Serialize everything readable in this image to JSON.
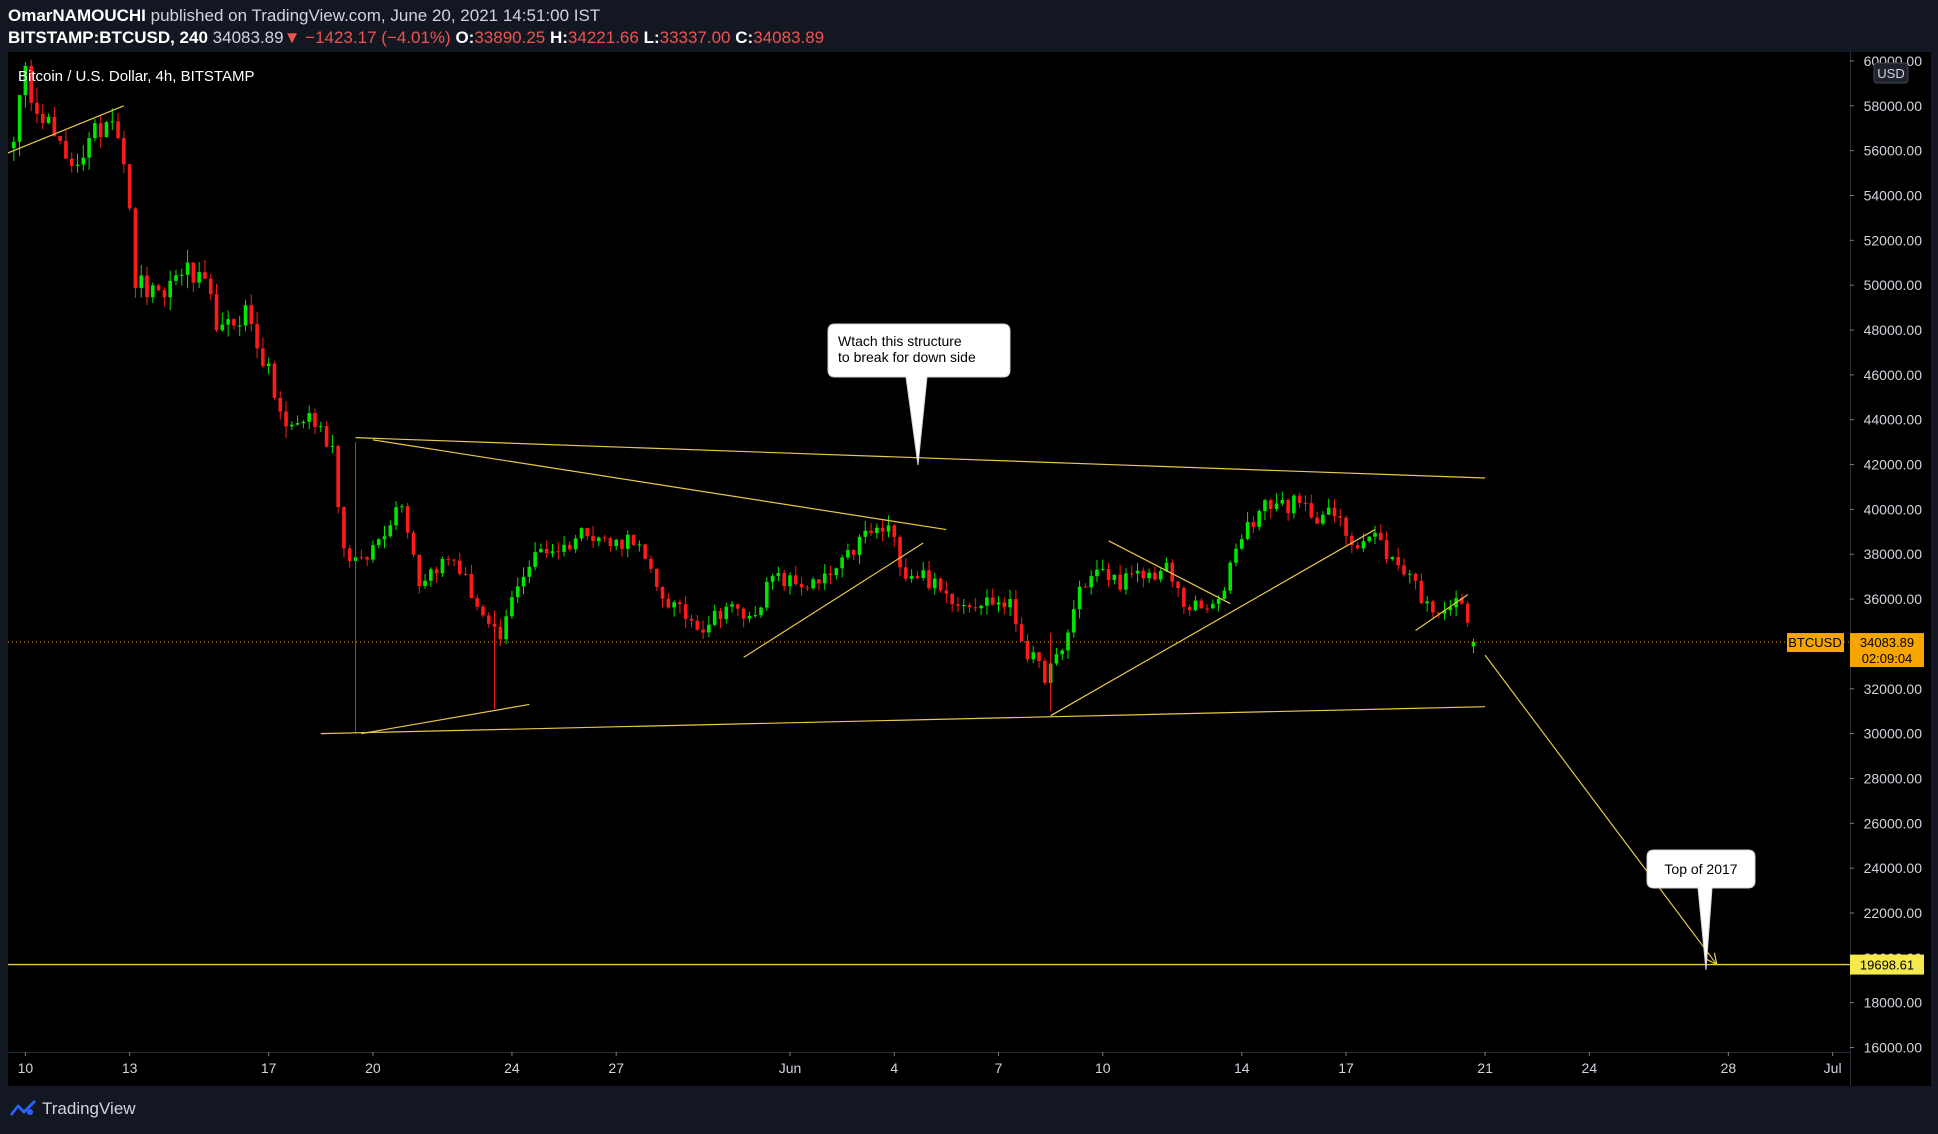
{
  "header": {
    "author": "OmarNAMOUCHI",
    "published": "published on TradingView.com, June 20, 2021 14:51:00 IST",
    "symbol": "BITSTAMP:BTCUSD, 240",
    "last": "34083.89",
    "change": "−1423.17 (−4.01%)",
    "o_label": "O:",
    "o": "33890.25",
    "h_label": "H:",
    "h": "34221.66",
    "l_label": "L:",
    "l": "33337.00",
    "c_label": "C:",
    "c": "34083.89"
  },
  "legend": {
    "title": "Bitcoin / U.S. Dollar, 4h, BITSTAMP"
  },
  "currency_badge": "USD",
  "price_tag": {
    "symbol": "BTCUSD",
    "price": "34083.89",
    "countdown": "02:09:04"
  },
  "level_tag": "19698.61",
  "callouts": [
    {
      "line1": "Wtach this structure",
      "line2": "to break for down side"
    },
    {
      "line1": "Top of 2017",
      "line2": ""
    }
  ],
  "footer": {
    "brand": "TradingView"
  },
  "colors": {
    "up": "#00e600",
    "down": "#ff1a1a",
    "drawing": "#e6c84a",
    "price_tag": "#f7a600",
    "level_tag": "#f5e94b"
  },
  "chart_data": {
    "type": "candlestick",
    "title": "Bitcoin / U.S. Dollar, 4h, BITSTAMP",
    "yaxis": {
      "range": [
        15800,
        60400
      ],
      "ticks": [
        16000,
        18000,
        20000,
        22000,
        24000,
        26000,
        28000,
        30000,
        32000,
        34000,
        36000,
        38000,
        40000,
        42000,
        44000,
        46000,
        48000,
        50000,
        52000,
        54000,
        56000,
        58000,
        60000
      ],
      "tick_labels": [
        "16000.00",
        "18000.00",
        "20000.00",
        "22000.00",
        "24000.00",
        "26000.00",
        "28000.00",
        "30000.00",
        "32000.00",
        "34000.00",
        "36000.00",
        "38000.00",
        "40000.00",
        "42000.00",
        "44000.00",
        "46000.00",
        "48000.00",
        "50000.00",
        "52000.00",
        "54000.00",
        "56000.00",
        "58000.00",
        "60000.00"
      ]
    },
    "xaxis": {
      "ticks": [
        "2021-05-10",
        "2021-05-13",
        "2021-05-17",
        "2021-05-20",
        "2021-05-24",
        "2021-05-27",
        "2021-06-01",
        "2021-06-04",
        "2021-06-07",
        "2021-06-10",
        "2021-06-14",
        "2021-06-17",
        "2021-06-21",
        "2021-06-24",
        "2021-06-28",
        "2021-07-01"
      ],
      "tick_labels": [
        "10",
        "13",
        "17",
        "20",
        "24",
        "27",
        "Jun",
        "4",
        "7",
        "10",
        "14",
        "17",
        "21",
        "24",
        "28",
        "Jul"
      ],
      "range": [
        "2021-05-09T12:00",
        "2021-07-01T12:00"
      ]
    },
    "waypoints": [
      [
        "2021-05-09T16:00",
        56900
      ],
      [
        "2021-05-10T00:00",
        59200
      ],
      [
        "2021-05-10T12:00",
        57800
      ],
      [
        "2021-05-11T04:00",
        55300
      ],
      [
        "2021-05-11T20:00",
        56200
      ],
      [
        "2021-05-12T12:00",
        57900
      ],
      [
        "2021-05-12T20:00",
        55800
      ],
      [
        "2021-05-13T04:00",
        50200
      ],
      [
        "2021-05-13T20:00",
        49300
      ],
      [
        "2021-05-14T12:00",
        50800
      ],
      [
        "2021-05-15T04:00",
        49800
      ],
      [
        "2021-05-15T16:00",
        47800
      ],
      [
        "2021-05-16T08:00",
        48900
      ],
      [
        "2021-05-17T00:00",
        46000
      ],
      [
        "2021-05-17T12:00",
        43500
      ],
      [
        "2021-05-18T04:00",
        44200
      ],
      [
        "2021-05-18T20:00",
        42800
      ],
      [
        "2021-05-19T04:00",
        38200
      ],
      [
        "2021-05-19T16:00",
        37500
      ],
      [
        "2021-05-20T04:00",
        38700
      ],
      [
        "2021-05-20T20:00",
        40500
      ],
      [
        "2021-05-21T08:00",
        36800
      ],
      [
        "2021-05-21T20:00",
        37500
      ],
      [
        "2021-05-22T08:00",
        37800
      ],
      [
        "2021-05-22T20:00",
        36300
      ],
      [
        "2021-05-23T08:00",
        34600
      ],
      [
        "2021-05-23T16:00",
        34200
      ],
      [
        "2021-05-24T04:00",
        36800
      ],
      [
        "2021-05-24T20:00",
        38200
      ],
      [
        "2021-05-25T12:00",
        38300
      ],
      [
        "2021-05-26T04:00",
        39200
      ],
      [
        "2021-05-26T20:00",
        38400
      ],
      [
        "2021-05-27T12:00",
        38800
      ],
      [
        "2021-05-28T04:00",
        36400
      ],
      [
        "2021-05-28T20:00",
        35400
      ],
      [
        "2021-05-29T12:00",
        34800
      ],
      [
        "2021-05-30T04:00",
        35700
      ],
      [
        "2021-05-30T20:00",
        35100
      ],
      [
        "2021-05-31T12:00",
        36900
      ],
      [
        "2021-06-01T04:00",
        36700
      ],
      [
        "2021-06-01T20:00",
        36600
      ],
      [
        "2021-06-02T12:00",
        37500
      ],
      [
        "2021-06-03T04:00",
        38900
      ],
      [
        "2021-06-03T20:00",
        39100
      ],
      [
        "2021-06-04T08:00",
        37200
      ],
      [
        "2021-06-04T20:00",
        37100
      ],
      [
        "2021-06-05T08:00",
        36300
      ],
      [
        "2021-06-06T00:00",
        35900
      ],
      [
        "2021-06-06T20:00",
        35900
      ],
      [
        "2021-06-07T08:00",
        35700
      ],
      [
        "2021-06-07T20:00",
        33600
      ],
      [
        "2021-06-08T08:00",
        32600
      ],
      [
        "2021-06-08T20:00",
        33600
      ],
      [
        "2021-06-09T08:00",
        36500
      ],
      [
        "2021-06-09T20:00",
        37200
      ],
      [
        "2021-06-10T12:00",
        36800
      ],
      [
        "2021-06-11T04:00",
        37000
      ],
      [
        "2021-06-11T20:00",
        37300
      ],
      [
        "2021-06-12T08:00",
        35800
      ],
      [
        "2021-06-12T20:00",
        35500
      ],
      [
        "2021-06-13T08:00",
        35700
      ],
      [
        "2021-06-13T20:00",
        38500
      ],
      [
        "2021-06-14T08:00",
        39600
      ],
      [
        "2021-06-14T20:00",
        40300
      ],
      [
        "2021-06-15T12:00",
        40200
      ],
      [
        "2021-06-16T04:00",
        39800
      ],
      [
        "2021-06-16T16:00",
        39700
      ],
      [
        "2021-06-17T04:00",
        38600
      ],
      [
        "2021-06-17T20:00",
        38800
      ],
      [
        "2021-06-18T08:00",
        37700
      ],
      [
        "2021-06-18T20:00",
        37200
      ],
      [
        "2021-06-19T08:00",
        35600
      ],
      [
        "2021-06-19T20:00",
        35700
      ],
      [
        "2021-06-20T08:00",
        35800
      ],
      [
        "2021-06-20T16:00",
        34084
      ]
    ],
    "drawings": [
      {
        "name": "upper-trendline",
        "from": [
          "2021-05-19T12:00",
          43200
        ],
        "to": [
          "2021-06-21T00:00",
          41400
        ]
      },
      {
        "name": "lower-trendline",
        "from": [
          "2021-05-18T12:00",
          30000
        ],
        "to": [
          "2021-06-21T00:00",
          31200
        ]
      },
      {
        "name": "descending-line",
        "from": [
          "2021-05-20T00:00",
          43100
        ],
        "to": [
          "2021-06-05T12:00",
          39100
        ]
      },
      {
        "name": "support-rise-1",
        "from": [
          "2021-05-19T16:00",
          30000
        ],
        "to": [
          "2021-05-24T12:00",
          31300
        ]
      },
      {
        "name": "support-rise-2",
        "from": [
          "2021-05-30T16:00",
          33400
        ],
        "to": [
          "2021-06-04T20:00",
          38500
        ]
      },
      {
        "name": "support-rise-3",
        "from": [
          "2021-06-08T12:00",
          30800
        ],
        "to": [
          "2021-06-17T20:00",
          39100
        ]
      },
      {
        "name": "flag-line-1",
        "from": [
          "2021-06-10T04:00",
          38600
        ],
        "to": [
          "2021-06-13T16:00",
          35800
        ]
      },
      {
        "name": "flag-line-2",
        "from": [
          "2021-05-09T12:00",
          55900
        ],
        "to": [
          "2021-05-12T20:00",
          58000
        ]
      },
      {
        "name": "flag-line-3",
        "from": [
          "2021-06-19T00:00",
          34600
        ],
        "to": [
          "2021-06-20T12:00",
          36200
        ]
      },
      {
        "name": "projection-arrow",
        "from": [
          "2021-06-21T00:00",
          33500
        ],
        "to": [
          "2021-06-27T16:00",
          19700
        ]
      }
    ],
    "level": 19698.61,
    "last_price": 34083.89
  }
}
